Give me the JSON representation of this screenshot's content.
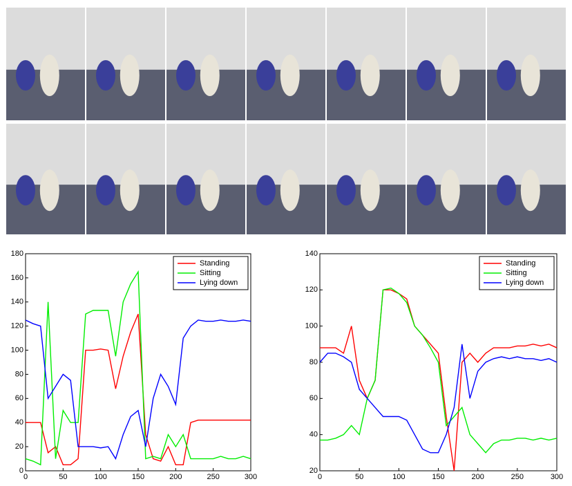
{
  "chart_data": [
    {
      "type": "line",
      "legend": "upper right",
      "x": [
        0,
        10,
        20,
        30,
        40,
        50,
        60,
        70,
        80,
        90,
        100,
        110,
        120,
        130,
        140,
        150,
        160,
        170,
        180,
        190,
        200,
        210,
        220,
        230,
        240,
        250,
        260,
        270,
        280,
        290,
        300
      ],
      "xlim": [
        0,
        300
      ],
      "xticks": [
        0,
        50,
        100,
        150,
        200,
        250,
        300
      ],
      "ylim": [
        0,
        180
      ],
      "yticks": [
        0,
        20,
        40,
        60,
        80,
        100,
        120,
        140,
        160,
        180
      ],
      "series": [
        {
          "name": "Standing",
          "color": "#ff0000",
          "values": [
            40,
            40,
            40,
            15,
            20,
            5,
            5,
            10,
            100,
            100,
            101,
            100,
            68,
            95,
            115,
            130,
            30,
            10,
            8,
            20,
            5,
            5,
            40,
            42,
            42,
            42,
            42,
            42,
            42,
            42,
            42
          ]
        },
        {
          "name": "Sitting",
          "color": "#00ee00",
          "values": [
            10,
            8,
            5,
            140,
            10,
            50,
            40,
            40,
            130,
            133,
            133,
            133,
            95,
            140,
            155,
            165,
            10,
            12,
            10,
            30,
            20,
            30,
            10,
            10,
            10,
            10,
            12,
            10,
            10,
            12,
            10
          ]
        },
        {
          "name": "Lying down",
          "color": "#0000ff",
          "values": [
            125,
            122,
            120,
            60,
            70,
            80,
            75,
            20,
            20,
            20,
            19,
            20,
            10,
            30,
            45,
            50,
            20,
            60,
            80,
            70,
            55,
            110,
            120,
            125,
            124,
            124,
            125,
            124,
            124,
            125,
            124
          ]
        }
      ]
    },
    {
      "type": "line",
      "legend": "upper right",
      "x": [
        0,
        10,
        20,
        30,
        40,
        50,
        60,
        70,
        80,
        90,
        100,
        110,
        120,
        130,
        140,
        150,
        160,
        170,
        180,
        190,
        200,
        210,
        220,
        230,
        240,
        250,
        260,
        270,
        280,
        290,
        300
      ],
      "xlim": [
        0,
        300
      ],
      "xticks": [
        0,
        50,
        100,
        150,
        200,
        250,
        300
      ],
      "ylim": [
        20,
        140
      ],
      "yticks": [
        20,
        40,
        60,
        80,
        100,
        120,
        140
      ],
      "series": [
        {
          "name": "Standing",
          "color": "#ff0000",
          "values": [
            88,
            88,
            88,
            85,
            100,
            70,
            60,
            70,
            120,
            120,
            118,
            115,
            100,
            95,
            90,
            85,
            50,
            20,
            80,
            85,
            80,
            85,
            88,
            88,
            88,
            89,
            89,
            90,
            89,
            90,
            88
          ]
        },
        {
          "name": "Sitting",
          "color": "#00ee00",
          "values": [
            37,
            37,
            38,
            40,
            45,
            40,
            60,
            70,
            120,
            121,
            118,
            113,
            100,
            95,
            88,
            80,
            45,
            50,
            55,
            40,
            35,
            30,
            35,
            37,
            37,
            38,
            38,
            37,
            38,
            37,
            38
          ]
        },
        {
          "name": "Lying down",
          "color": "#0000ff",
          "values": [
            80,
            85,
            85,
            83,
            80,
            65,
            60,
            55,
            50,
            50,
            50,
            48,
            40,
            32,
            30,
            30,
            40,
            55,
            90,
            60,
            75,
            80,
            82,
            83,
            82,
            83,
            82,
            82,
            81,
            82,
            80
          ]
        }
      ]
    }
  ]
}
